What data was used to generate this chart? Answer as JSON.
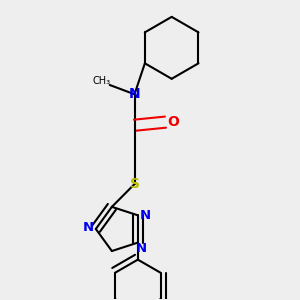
{
  "bg_color": "#eeeeee",
  "bond_color": "#000000",
  "n_color": "#0000ee",
  "o_color": "#ee0000",
  "s_color": "#bbbb00",
  "line_width": 1.5,
  "font_size": 10,
  "fig_size": [
    3.0,
    3.0
  ],
  "dpi": 100,
  "xlim": [
    0.05,
    0.85
  ],
  "ylim": [
    0.02,
    0.98
  ]
}
